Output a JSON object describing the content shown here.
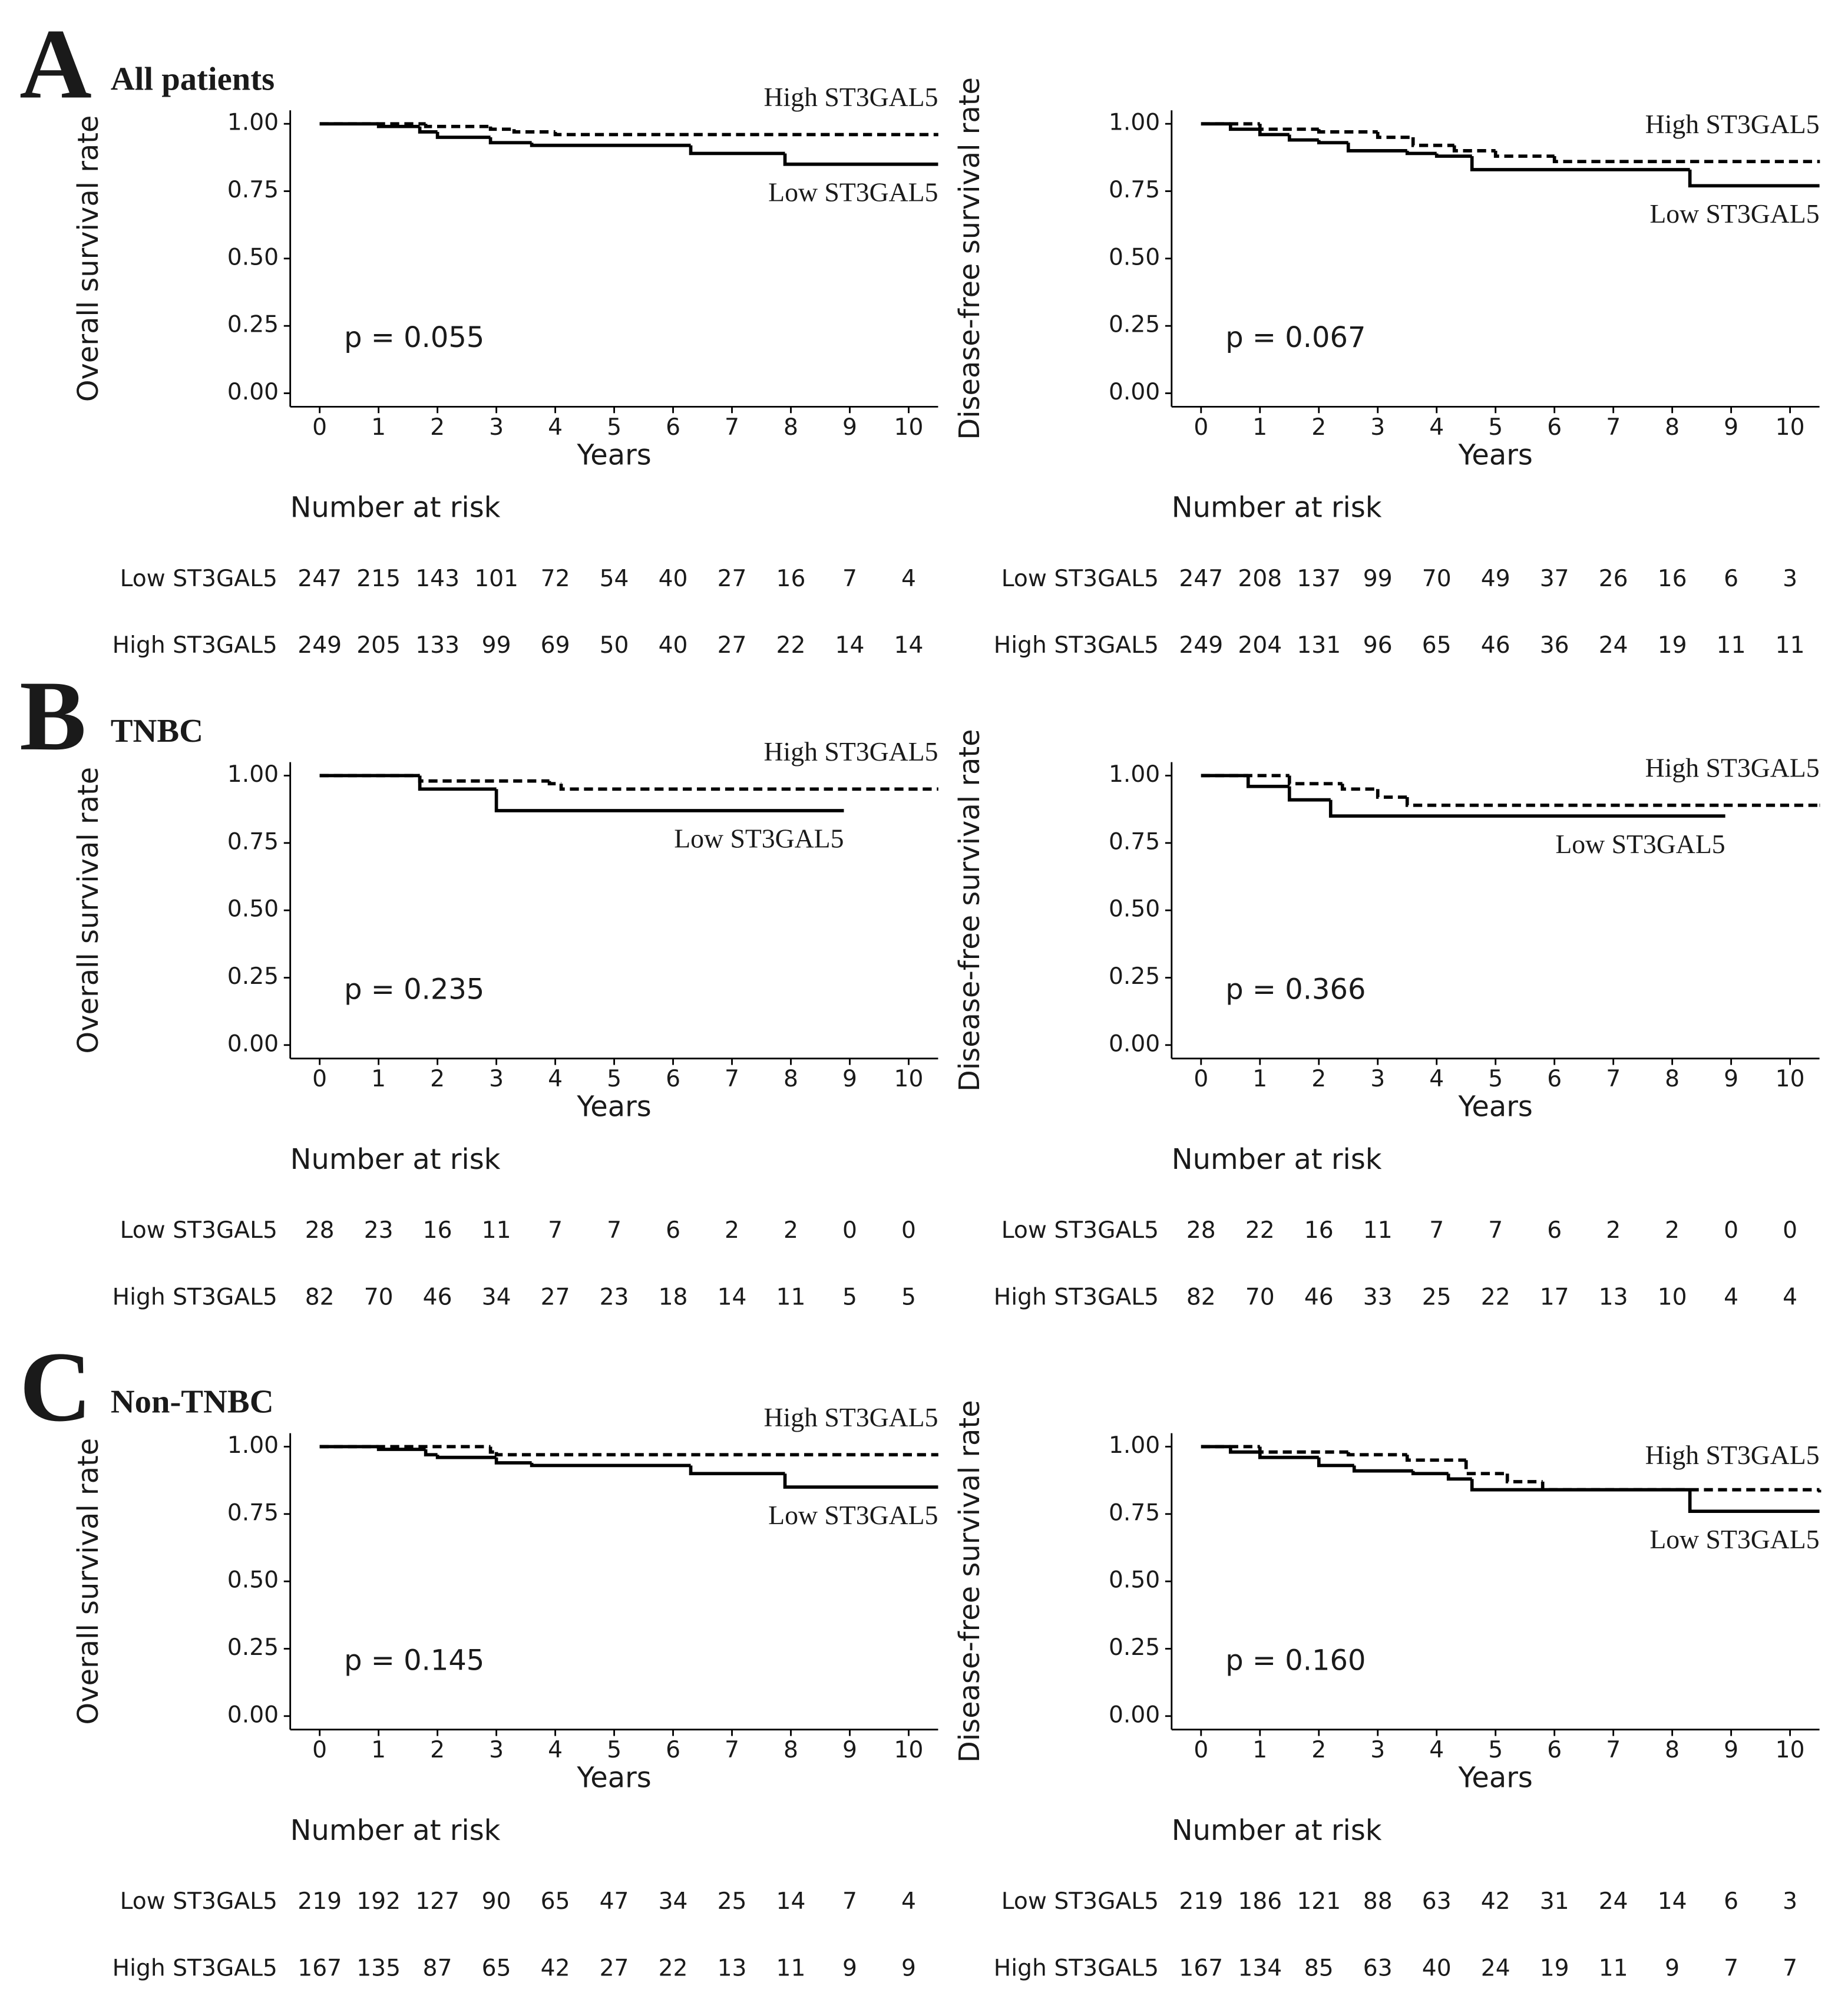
{
  "chart_data": [
    {
      "type": "step",
      "panel_label": "A",
      "subtitle": "All patients",
      "ylabel": "Overall survival rate",
      "xlabel": "Years",
      "annotation": "p = 0.055",
      "xlim": [
        -0.5,
        10.5
      ],
      "ylim": [
        -0.05,
        1.05
      ],
      "xticks": [
        0,
        1,
        2,
        3,
        4,
        5,
        6,
        7,
        8,
        9,
        10
      ],
      "yticks": [
        {
          "value": 0,
          "label": "0.00"
        },
        {
          "value": 0.25,
          "label": "0.25"
        },
        {
          "value": 0.5,
          "label": "0.50"
        },
        {
          "value": 0.75,
          "label": "0.75"
        },
        {
          "value": 1,
          "label": "1.00"
        }
      ],
      "series": [
        {
          "name": "Low ST3GAL5",
          "color": "#000000",
          "linestyle": "solid",
          "x": [
            0,
            1,
            1.7,
            2,
            2.9,
            3.6,
            6.3,
            7.9,
            10.5
          ],
          "values": [
            1,
            0.99,
            0.97,
            0.95,
            0.93,
            0.92,
            0.89,
            0.85,
            0.85
          ]
        },
        {
          "name": "High ST3GAL5",
          "color": "#000000",
          "linestyle": "dashed",
          "x": [
            0,
            1.8,
            2.9,
            3.3,
            4.0,
            10.5
          ],
          "values": [
            1,
            0.99,
            0.98,
            0.97,
            0.96,
            0.96
          ]
        }
      ],
      "risk_table": {
        "title": "Number at risk",
        "rows": [
          {
            "label": "Low ST3GAL5",
            "values": [
              247,
              215,
              143,
              101,
              72,
              54,
              40,
              27,
              16,
              7,
              4
            ]
          },
          {
            "label": "High ST3GAL5",
            "values": [
              249,
              205,
              133,
              99,
              69,
              50,
              40,
              27,
              22,
              14,
              14
            ]
          }
        ]
      }
    },
    {
      "type": "step",
      "ylabel": "Disease-free survival rate",
      "xlabel": "Years",
      "annotation": "p = 0.067",
      "xlim": [
        -0.5,
        10.5
      ],
      "ylim": [
        -0.05,
        1.05
      ],
      "xticks": [
        0,
        1,
        2,
        3,
        4,
        5,
        6,
        7,
        8,
        9,
        10
      ],
      "yticks": [
        {
          "value": 0,
          "label": "0.00"
        },
        {
          "value": 0.25,
          "label": "0.25"
        },
        {
          "value": 0.5,
          "label": "0.50"
        },
        {
          "value": 0.75,
          "label": "0.75"
        },
        {
          "value": 1,
          "label": "1.00"
        }
      ],
      "series": [
        {
          "name": "Low ST3GAL5",
          "color": "#000000",
          "linestyle": "solid",
          "x": [
            0,
            0.5,
            1,
            1.5,
            2,
            2.5,
            3.5,
            4,
            4.6,
            8.3,
            10.5
          ],
          "values": [
            1,
            0.98,
            0.96,
            0.94,
            0.93,
            0.9,
            0.89,
            0.88,
            0.83,
            0.77,
            0.77
          ]
        },
        {
          "name": "High ST3GAL5",
          "color": "#000000",
          "linestyle": "dashed",
          "x": [
            0,
            1,
            2,
            3,
            3.6,
            4.3,
            5,
            6,
            10.5
          ],
          "values": [
            1,
            0.98,
            0.97,
            0.95,
            0.92,
            0.9,
            0.88,
            0.86,
            0.86
          ]
        }
      ],
      "risk_table": {
        "title": "Number at risk",
        "rows": [
          {
            "label": "Low ST3GAL5",
            "values": [
              247,
              208,
              137,
              99,
              70,
              49,
              37,
              26,
              16,
              6,
              3
            ]
          },
          {
            "label": "High ST3GAL5",
            "values": [
              249,
              204,
              131,
              96,
              65,
              46,
              36,
              24,
              19,
              11,
              11
            ]
          }
        ]
      }
    },
    {
      "type": "step",
      "panel_label": "B",
      "subtitle": "TNBC",
      "ylabel": "Overall survival rate",
      "xlabel": "Years",
      "annotation": "p = 0.235",
      "xlim": [
        -0.5,
        10.5
      ],
      "ylim": [
        -0.05,
        1.05
      ],
      "xticks": [
        0,
        1,
        2,
        3,
        4,
        5,
        6,
        7,
        8,
        9,
        10
      ],
      "yticks": [
        {
          "value": 0,
          "label": "0.00"
        },
        {
          "value": 0.25,
          "label": "0.25"
        },
        {
          "value": 0.5,
          "label": "0.50"
        },
        {
          "value": 0.75,
          "label": "0.75"
        },
        {
          "value": 1,
          "label": "1.00"
        }
      ],
      "series": [
        {
          "name": "Low ST3GAL5",
          "color": "#000000",
          "linestyle": "solid",
          "x": [
            0,
            1.7,
            3,
            8.9
          ],
          "values": [
            1,
            0.95,
            0.87,
            0.87
          ]
        },
        {
          "name": "High ST3GAL5",
          "color": "#000000",
          "linestyle": "dashed",
          "x": [
            0,
            1.7,
            3.9,
            4.1,
            10.5
          ],
          "values": [
            1,
            0.98,
            0.97,
            0.95,
            0.95
          ]
        }
      ],
      "risk_table": {
        "title": "Number at risk",
        "rows": [
          {
            "label": "Low ST3GAL5",
            "values": [
              28,
              23,
              16,
              11,
              7,
              7,
              6,
              2,
              2,
              0,
              0
            ]
          },
          {
            "label": "High ST3GAL5",
            "values": [
              82,
              70,
              46,
              34,
              27,
              23,
              18,
              14,
              11,
              5,
              5
            ]
          }
        ]
      }
    },
    {
      "type": "step",
      "ylabel": "Disease-free survival rate",
      "xlabel": "Years",
      "annotation": "p = 0.366",
      "xlim": [
        -0.5,
        10.5
      ],
      "ylim": [
        -0.05,
        1.05
      ],
      "xticks": [
        0,
        1,
        2,
        3,
        4,
        5,
        6,
        7,
        8,
        9,
        10
      ],
      "yticks": [
        {
          "value": 0,
          "label": "0.00"
        },
        {
          "value": 0.25,
          "label": "0.25"
        },
        {
          "value": 0.5,
          "label": "0.50"
        },
        {
          "value": 0.75,
          "label": "0.75"
        },
        {
          "value": 1,
          "label": "1.00"
        }
      ],
      "series": [
        {
          "name": "Low ST3GAL5",
          "color": "#000000",
          "linestyle": "solid",
          "x": [
            0,
            0.8,
            1.5,
            2.2,
            8.9
          ],
          "values": [
            1,
            0.96,
            0.91,
            0.85,
            0.85
          ]
        },
        {
          "name": "High ST3GAL5",
          "color": "#000000",
          "linestyle": "dashed",
          "x": [
            0,
            1.5,
            2.4,
            3,
            3.5,
            10.5
          ],
          "values": [
            1,
            0.97,
            0.95,
            0.92,
            0.89,
            0.89
          ]
        }
      ],
      "risk_table": {
        "title": "Number at risk",
        "rows": [
          {
            "label": "Low ST3GAL5",
            "values": [
              28,
              22,
              16,
              11,
              7,
              7,
              6,
              2,
              2,
              0,
              0
            ]
          },
          {
            "label": "High ST3GAL5",
            "values": [
              82,
              70,
              46,
              33,
              25,
              22,
              17,
              13,
              10,
              4,
              4
            ]
          }
        ]
      }
    },
    {
      "type": "step",
      "panel_label": "C",
      "subtitle": "Non-TNBC",
      "ylabel": "Overall survival rate",
      "xlabel": "Years",
      "annotation": "p = 0.145",
      "xlim": [
        -0.5,
        10.5
      ],
      "ylim": [
        -0.05,
        1.05
      ],
      "xticks": [
        0,
        1,
        2,
        3,
        4,
        5,
        6,
        7,
        8,
        9,
        10
      ],
      "yticks": [
        {
          "value": 0,
          "label": "0.00"
        },
        {
          "value": 0.25,
          "label": "0.25"
        },
        {
          "value": 0.5,
          "label": "0.50"
        },
        {
          "value": 0.75,
          "label": "0.75"
        },
        {
          "value": 1,
          "label": "1.00"
        }
      ],
      "series": [
        {
          "name": "Low ST3GAL5",
          "color": "#000000",
          "linestyle": "solid",
          "x": [
            0,
            1,
            1.8,
            2,
            3,
            3.6,
            6.3,
            7.9,
            10.5
          ],
          "values": [
            1,
            0.99,
            0.97,
            0.96,
            0.94,
            0.93,
            0.9,
            0.85,
            0.85
          ]
        },
        {
          "name": "High ST3GAL5",
          "color": "#000000",
          "linestyle": "dashed",
          "x": [
            0,
            2.9,
            3,
            10.5
          ],
          "values": [
            1,
            0.98,
            0.97,
            0.97
          ]
        }
      ],
      "risk_table": {
        "title": "Number at risk",
        "rows": [
          {
            "label": "Low ST3GAL5",
            "values": [
              219,
              192,
              127,
              90,
              65,
              47,
              34,
              25,
              14,
              7,
              4
            ]
          },
          {
            "label": "High ST3GAL5",
            "values": [
              167,
              135,
              87,
              65,
              42,
              27,
              22,
              13,
              11,
              9,
              9
            ]
          }
        ]
      }
    },
    {
      "type": "step",
      "ylabel": "Disease-free survival rate",
      "xlabel": "Years",
      "annotation": "p = 0.160",
      "xlim": [
        -0.5,
        10.5
      ],
      "ylim": [
        -0.05,
        1.05
      ],
      "xticks": [
        0,
        1,
        2,
        3,
        4,
        5,
        6,
        7,
        8,
        9,
        10
      ],
      "yticks": [
        {
          "value": 0,
          "label": "0.00"
        },
        {
          "value": 0.25,
          "label": "0.25"
        },
        {
          "value": 0.5,
          "label": "0.50"
        },
        {
          "value": 0.75,
          "label": "0.75"
        },
        {
          "value": 1,
          "label": "1.00"
        }
      ],
      "series": [
        {
          "name": "Low ST3GAL5",
          "color": "#000000",
          "linestyle": "solid",
          "x": [
            0,
            0.5,
            1,
            2,
            2.6,
            3.6,
            4.2,
            4.6,
            8.3,
            10.5
          ],
          "values": [
            1,
            0.98,
            0.96,
            0.93,
            0.91,
            0.9,
            0.88,
            0.84,
            0.76,
            0.76
          ]
        },
        {
          "name": "High ST3GAL5",
          "color": "#000000",
          "linestyle": "dashed",
          "x": [
            0,
            1,
            2.5,
            3.5,
            4.5,
            5.2,
            5.8,
            10.5
          ],
          "values": [
            1,
            0.98,
            0.97,
            0.95,
            0.9,
            0.87,
            0.84,
            0.83
          ]
        }
      ],
      "risk_table": {
        "title": "Number at risk",
        "rows": [
          {
            "label": "Low ST3GAL5",
            "values": [
              219,
              186,
              121,
              88,
              63,
              42,
              31,
              24,
              14,
              6,
              3
            ]
          },
          {
            "label": "High ST3GAL5",
            "values": [
              167,
              134,
              85,
              63,
              40,
              24,
              19,
              11,
              9,
              7,
              7
            ]
          }
        ]
      }
    }
  ]
}
